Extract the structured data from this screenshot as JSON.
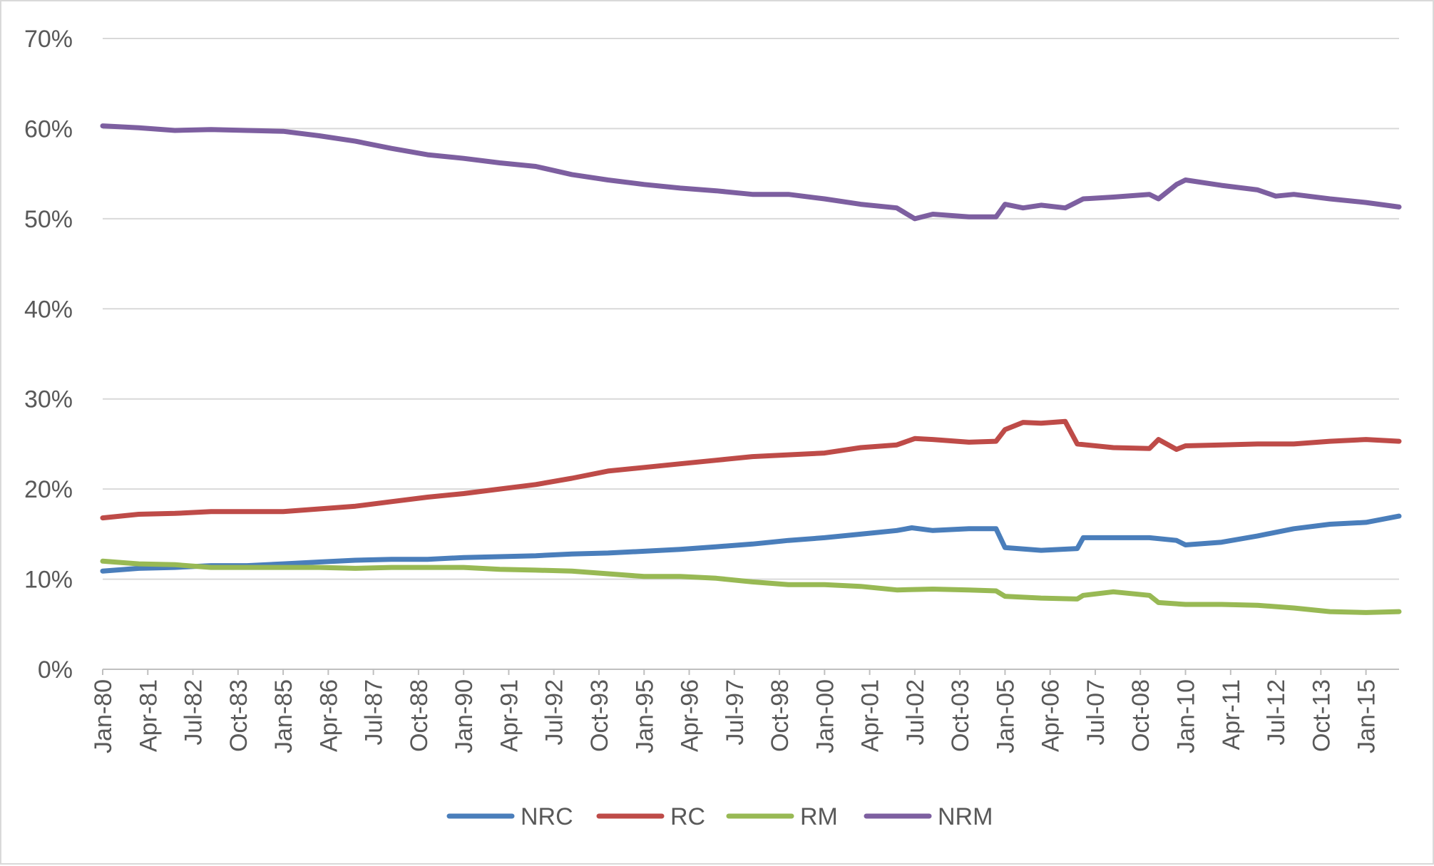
{
  "chart_data": {
    "type": "line",
    "title": "",
    "xlabel": "",
    "ylabel": "",
    "ylim": [
      0,
      0.7
    ],
    "y_ticks": [
      0,
      0.1,
      0.2,
      0.3,
      0.4,
      0.5,
      0.6,
      0.7
    ],
    "y_tick_labels": [
      "0%",
      "10%",
      "20%",
      "30%",
      "40%",
      "50%",
      "60%",
      "70%"
    ],
    "x_tick_labels": [
      "Jan-80",
      "Apr-81",
      "Jul-82",
      "Oct-83",
      "Jan-85",
      "Apr-86",
      "Jul-87",
      "Oct-88",
      "Jan-90",
      "Apr-91",
      "Jul-92",
      "Oct-93",
      "Jan-95",
      "Apr-96",
      "Jul-97",
      "Oct-98",
      "Jan-00",
      "Apr-01",
      "Jul-02",
      "Oct-03",
      "Jan-05",
      "Apr-06",
      "Jul-07",
      "Oct-08",
      "Jan-10",
      "Apr-11",
      "Jul-12",
      "Oct-13",
      "Jan-15"
    ],
    "x_range": [
      "Jan-80",
      "Dec-15"
    ],
    "grid": true,
    "legend_position": "bottom",
    "series": [
      {
        "name": "NRC",
        "color": "#4a7ebb",
        "points": [
          [
            "Jan-80",
            0.109
          ],
          [
            "Jan-81",
            0.112
          ],
          [
            "Jan-82",
            0.113
          ],
          [
            "Jan-83",
            0.115
          ],
          [
            "Jan-84",
            0.115
          ],
          [
            "Jan-85",
            0.117
          ],
          [
            "Jan-86",
            0.119
          ],
          [
            "Jan-87",
            0.121
          ],
          [
            "Jan-88",
            0.122
          ],
          [
            "Jan-89",
            0.122
          ],
          [
            "Jan-90",
            0.124
          ],
          [
            "Jan-91",
            0.125
          ],
          [
            "Jan-92",
            0.126
          ],
          [
            "Jan-93",
            0.128
          ],
          [
            "Jan-94",
            0.129
          ],
          [
            "Jan-95",
            0.131
          ],
          [
            "Jan-96",
            0.133
          ],
          [
            "Jan-97",
            0.136
          ],
          [
            "Jan-98",
            0.139
          ],
          [
            "Jan-99",
            0.143
          ],
          [
            "Jan-00",
            0.146
          ],
          [
            "Jan-01",
            0.15
          ],
          [
            "Jan-02",
            0.154
          ],
          [
            "Jun-02",
            0.157
          ],
          [
            "Jan-03",
            0.154
          ],
          [
            "Jan-04",
            0.156
          ],
          [
            "Oct-04",
            0.156
          ],
          [
            "Jan-05",
            0.135
          ],
          [
            "Jan-06",
            0.132
          ],
          [
            "Jan-07",
            0.134
          ],
          [
            "Mar-07",
            0.146
          ],
          [
            "Jan-08",
            0.146
          ],
          [
            "Jan-09",
            0.146
          ],
          [
            "Oct-09",
            0.143
          ],
          [
            "Jan-10",
            0.138
          ],
          [
            "Jan-11",
            0.141
          ],
          [
            "Jan-12",
            0.148
          ],
          [
            "Jan-13",
            0.156
          ],
          [
            "Jan-14",
            0.161
          ],
          [
            "Jan-15",
            0.163
          ],
          [
            "Dec-15",
            0.17
          ]
        ]
      },
      {
        "name": "RC",
        "color": "#be4b48",
        "points": [
          [
            "Jan-80",
            0.168
          ],
          [
            "Jan-81",
            0.172
          ],
          [
            "Jan-82",
            0.173
          ],
          [
            "Jan-83",
            0.175
          ],
          [
            "Jan-84",
            0.175
          ],
          [
            "Jan-85",
            0.175
          ],
          [
            "Jan-86",
            0.178
          ],
          [
            "Jan-87",
            0.181
          ],
          [
            "Jan-88",
            0.186
          ],
          [
            "Jan-89",
            0.191
          ],
          [
            "Jan-90",
            0.195
          ],
          [
            "Jan-91",
            0.2
          ],
          [
            "Jan-92",
            0.205
          ],
          [
            "Jan-93",
            0.212
          ],
          [
            "Jan-94",
            0.22
          ],
          [
            "Jan-95",
            0.224
          ],
          [
            "Jan-96",
            0.228
          ],
          [
            "Jan-97",
            0.232
          ],
          [
            "Jan-98",
            0.236
          ],
          [
            "Jan-99",
            0.238
          ],
          [
            "Jan-00",
            0.24
          ],
          [
            "Jan-01",
            0.246
          ],
          [
            "Jan-02",
            0.249
          ],
          [
            "Jul-02",
            0.256
          ],
          [
            "Jan-03",
            0.255
          ],
          [
            "Jan-04",
            0.252
          ],
          [
            "Oct-04",
            0.253
          ],
          [
            "Jan-05",
            0.266
          ],
          [
            "Jul-05",
            0.274
          ],
          [
            "Jan-06",
            0.273
          ],
          [
            "Sep-06",
            0.275
          ],
          [
            "Jan-07",
            0.25
          ],
          [
            "Jan-08",
            0.246
          ],
          [
            "Jan-09",
            0.245
          ],
          [
            "Apr-09",
            0.255
          ],
          [
            "Oct-09",
            0.244
          ],
          [
            "Jan-10",
            0.248
          ],
          [
            "Jan-11",
            0.249
          ],
          [
            "Jan-12",
            0.25
          ],
          [
            "Jan-13",
            0.25
          ],
          [
            "Jan-14",
            0.253
          ],
          [
            "Jan-15",
            0.255
          ],
          [
            "Dec-15",
            0.253
          ]
        ]
      },
      {
        "name": "RM",
        "color": "#98b954",
        "points": [
          [
            "Jan-80",
            0.12
          ],
          [
            "Jan-81",
            0.117
          ],
          [
            "Jan-82",
            0.116
          ],
          [
            "Jan-83",
            0.113
          ],
          [
            "Jan-84",
            0.113
          ],
          [
            "Jan-85",
            0.113
          ],
          [
            "Jan-86",
            0.113
          ],
          [
            "Jan-87",
            0.112
          ],
          [
            "Jan-88",
            0.113
          ],
          [
            "Jan-89",
            0.113
          ],
          [
            "Jan-90",
            0.113
          ],
          [
            "Jan-91",
            0.111
          ],
          [
            "Jan-92",
            0.11
          ],
          [
            "Jan-93",
            0.109
          ],
          [
            "Jan-94",
            0.106
          ],
          [
            "Jan-95",
            0.103
          ],
          [
            "Jan-96",
            0.103
          ],
          [
            "Jan-97",
            0.101
          ],
          [
            "Jan-98",
            0.097
          ],
          [
            "Jan-99",
            0.094
          ],
          [
            "Jan-00",
            0.094
          ],
          [
            "Jan-01",
            0.092
          ],
          [
            "Jan-02",
            0.088
          ],
          [
            "Jan-03",
            0.089
          ],
          [
            "Jan-04",
            0.088
          ],
          [
            "Oct-04",
            0.087
          ],
          [
            "Jan-05",
            0.081
          ],
          [
            "Jan-06",
            0.079
          ],
          [
            "Jan-07",
            0.078
          ],
          [
            "Mar-07",
            0.082
          ],
          [
            "Jan-08",
            0.086
          ],
          [
            "Jan-09",
            0.082
          ],
          [
            "Apr-09",
            0.074
          ],
          [
            "Jan-10",
            0.072
          ],
          [
            "Jan-11",
            0.072
          ],
          [
            "Jan-12",
            0.071
          ],
          [
            "Jan-13",
            0.068
          ],
          [
            "Jan-14",
            0.064
          ],
          [
            "Jan-15",
            0.063
          ],
          [
            "Dec-15",
            0.064
          ]
        ]
      },
      {
        "name": "NRM",
        "color": "#7d5fa0",
        "points": [
          [
            "Jan-80",
            0.603
          ],
          [
            "Jan-81",
            0.601
          ],
          [
            "Jan-82",
            0.598
          ],
          [
            "Jan-83",
            0.599
          ],
          [
            "Jan-84",
            0.598
          ],
          [
            "Jan-85",
            0.597
          ],
          [
            "Jan-86",
            0.592
          ],
          [
            "Jan-87",
            0.586
          ],
          [
            "Jan-88",
            0.578
          ],
          [
            "Jan-89",
            0.571
          ],
          [
            "Jan-90",
            0.567
          ],
          [
            "Jan-91",
            0.562
          ],
          [
            "Jan-92",
            0.558
          ],
          [
            "Jan-93",
            0.549
          ],
          [
            "Jan-94",
            0.543
          ],
          [
            "Jan-95",
            0.538
          ],
          [
            "Jan-96",
            0.534
          ],
          [
            "Jan-97",
            0.531
          ],
          [
            "Jan-98",
            0.527
          ],
          [
            "Jan-99",
            0.527
          ],
          [
            "Jan-00",
            0.522
          ],
          [
            "Jan-01",
            0.516
          ],
          [
            "Jan-02",
            0.512
          ],
          [
            "Jul-02",
            0.5
          ],
          [
            "Jan-03",
            0.505
          ],
          [
            "Jan-04",
            0.502
          ],
          [
            "Oct-04",
            0.502
          ],
          [
            "Jan-05",
            0.516
          ],
          [
            "Jul-05",
            0.512
          ],
          [
            "Jan-06",
            0.515
          ],
          [
            "Sep-06",
            0.512
          ],
          [
            "Mar-07",
            0.522
          ],
          [
            "Jan-08",
            0.524
          ],
          [
            "Jan-09",
            0.527
          ],
          [
            "Apr-09",
            0.522
          ],
          [
            "Oct-09",
            0.538
          ],
          [
            "Jan-10",
            0.543
          ],
          [
            "Jan-11",
            0.537
          ],
          [
            "Jan-12",
            0.532
          ],
          [
            "Jul-12",
            0.525
          ],
          [
            "Jan-13",
            0.527
          ],
          [
            "Jan-14",
            0.522
          ],
          [
            "Jan-15",
            0.518
          ],
          [
            "Dec-15",
            0.513
          ]
        ]
      }
    ]
  }
}
